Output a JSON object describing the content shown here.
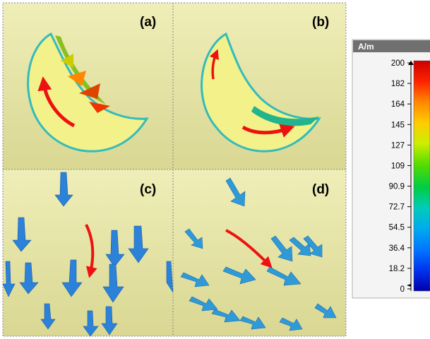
{
  "panels": [
    {
      "id": "a",
      "label": "(a)"
    },
    {
      "id": "b",
      "label": "(b)"
    },
    {
      "id": "c",
      "label": "(c)"
    },
    {
      "id": "d",
      "label": "(d)"
    }
  ],
  "colorbar": {
    "unit": "A/m",
    "ticks": [
      "200",
      "182",
      "164",
      "145",
      "127",
      "109",
      "90.9",
      "72.7",
      "54.5",
      "36.4",
      "18.2",
      "0"
    ],
    "colors": [
      "#cc0000",
      "#ff3300",
      "#ff8800",
      "#ffcc00",
      "#ccee00",
      "#66dd00",
      "#00cc33",
      "#00ccaa",
      "#00aaee",
      "#0077ff",
      "#0033ee",
      "#0000aa"
    ]
  },
  "colors": {
    "background_panel": "#e8e6a6",
    "crescent": "#f3f18a",
    "flow_arrow": "#ee1111"
  }
}
